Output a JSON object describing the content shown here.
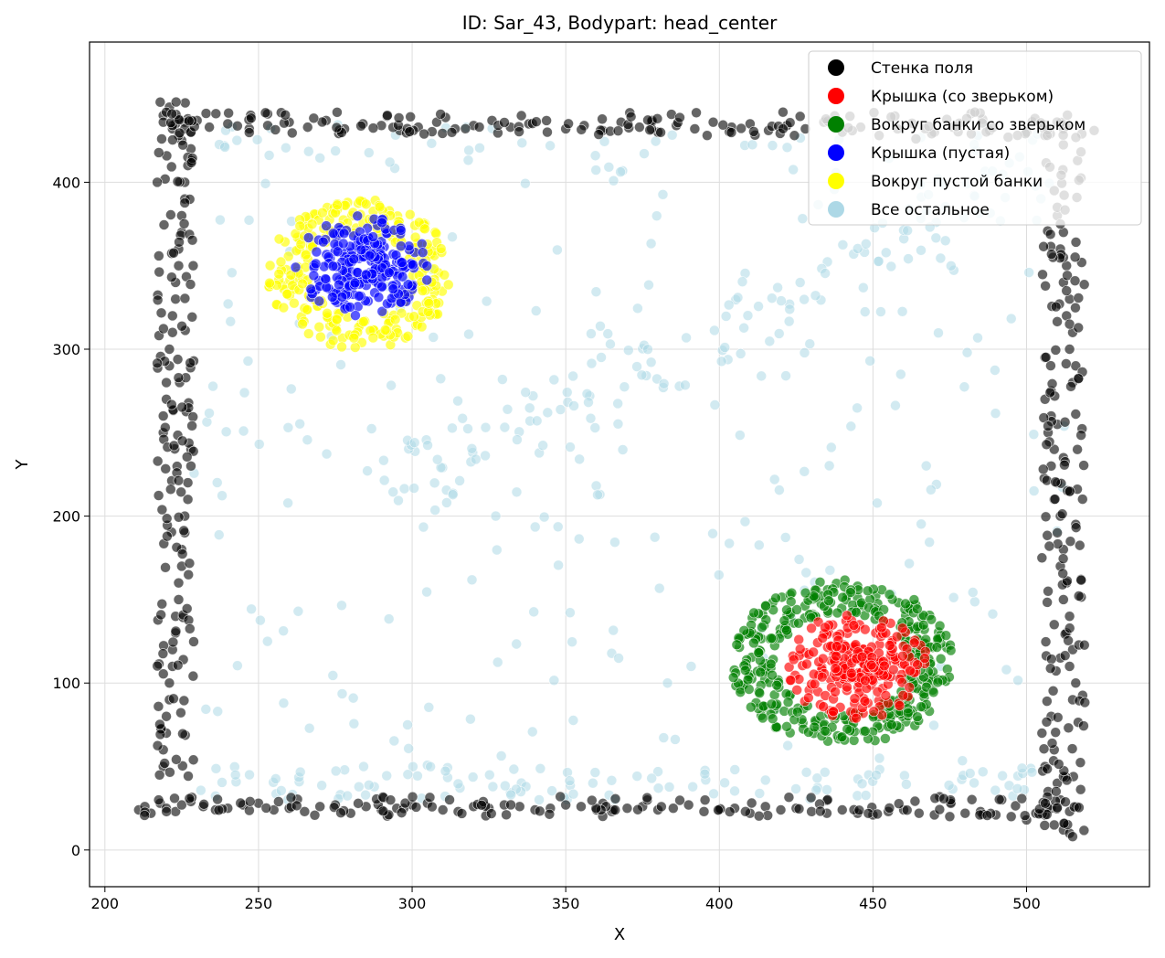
{
  "chart_data": {
    "type": "scatter",
    "title": "ID: Sar_43, Bodypart: head_center",
    "xlabel": "X",
    "ylabel": "Y",
    "xlim": [
      195,
      540
    ],
    "ylim": [
      -22,
      484
    ],
    "xticks": [
      200,
      250,
      300,
      350,
      400,
      450,
      500
    ],
    "yticks": [
      0,
      100,
      200,
      300,
      400
    ],
    "grid": true,
    "legend_position": "top-right",
    "series": [
      {
        "name": "Стенка поля",
        "color": "#000000",
        "description_of_shape": "dense band along the arena border",
        "x": [
          211,
          213,
          215,
          218,
          220,
          223,
          225,
          228,
          232,
          236,
          240,
          245,
          250,
          255,
          260,
          265,
          270,
          275,
          280,
          285,
          290,
          295,
          300,
          305,
          310,
          315,
          320,
          325,
          330,
          335,
          340,
          345,
          350,
          355,
          360,
          365,
          370,
          375,
          380,
          385,
          390,
          395,
          400,
          405,
          410,
          415,
          420,
          425,
          430,
          435,
          440,
          445,
          450,
          455,
          460,
          465,
          470,
          475,
          480,
          485,
          490,
          495,
          500,
          503,
          506,
          509,
          512,
          514,
          515,
          219,
          220,
          221,
          222,
          223,
          224,
          225,
          226,
          227,
          228,
          219,
          220,
          221,
          222,
          223,
          224,
          225,
          226,
          227,
          228,
          219,
          220,
          221,
          222,
          223,
          224,
          225,
          226,
          227,
          228,
          219,
          220,
          221,
          222,
          223,
          224,
          225,
          226,
          227,
          228,
          219,
          221,
          223,
          225,
          227,
          218,
          220,
          222,
          224,
          226,
          219,
          222,
          224,
          226,
          228,
          230,
          234,
          240,
          247,
          253,
          260,
          266,
          272,
          278,
          284,
          290,
          296,
          302,
          308,
          314,
          320,
          326,
          332,
          338,
          344,
          350,
          356,
          362,
          368,
          374,
          380,
          386,
          392,
          398,
          404,
          410,
          416,
          422,
          428,
          434,
          440,
          446,
          452,
          458,
          464,
          470,
          476,
          482,
          488,
          494,
          500,
          506,
          512,
          518,
          522,
          510,
          511,
          512,
          513,
          514,
          515,
          508,
          509,
          510,
          511,
          512,
          513,
          514,
          515,
          516,
          508,
          509,
          510,
          511,
          512,
          513,
          514,
          515,
          516,
          506,
          507,
          508,
          509,
          510,
          511,
          512,
          513,
          514,
          515,
          505,
          506,
          507,
          508,
          509,
          510,
          511,
          512,
          513,
          514,
          506,
          508,
          510,
          512,
          514,
          516,
          505,
          507,
          509,
          511
        ],
        "y": [
          24,
          26,
          22,
          28,
          25,
          23,
          27,
          29,
          26,
          24,
          25,
          27,
          28,
          24,
          25,
          23,
          26,
          27,
          22,
          26,
          24,
          25,
          27,
          28,
          24,
          23,
          26,
          25,
          27,
          26,
          24,
          25,
          27,
          26,
          24,
          23,
          25,
          26,
          24,
          25,
          27,
          23,
          24,
          25,
          22,
          26,
          24,
          25,
          23,
          22,
          24,
          22,
          21,
          23,
          24,
          22,
          21,
          20,
          22,
          23,
          21,
          20,
          18,
          22,
          21,
          15,
          12,
          10,
          8,
          50,
          70,
          90,
          110,
          130,
          150,
          170,
          190,
          210,
          230,
          250,
          270,
          290,
          310,
          330,
          350,
          370,
          390,
          410,
          420,
          60,
          80,
          100,
          120,
          140,
          160,
          180,
          200,
          220,
          240,
          260,
          280,
          300,
          320,
          340,
          360,
          380,
          400,
          415,
          430,
          440,
          445,
          435,
          425,
          438,
          448,
          442,
          432,
          428,
          436,
          436,
          434,
          438,
          432,
          430,
          437,
          433,
          435,
          432,
          434,
          436,
          433,
          437,
          432,
          435,
          434,
          431,
          433,
          436,
          432,
          434,
          437,
          433,
          435,
          430,
          432,
          434,
          431,
          436,
          433,
          430,
          434,
          432,
          436,
          433,
          435,
          431,
          434,
          432,
          436,
          430,
          433,
          428,
          432,
          426,
          430,
          433,
          429,
          431,
          427,
          430,
          428,
          432,
          429,
          431,
          380,
          360,
          340,
          320,
          300,
          280,
          260,
          240,
          220,
          200,
          180,
          160,
          140,
          120,
          100,
          80,
          60,
          40,
          30,
          370,
          350,
          330,
          310,
          290,
          270,
          250,
          230,
          210,
          190,
          170,
          150,
          130,
          110,
          90,
          70,
          50,
          35,
          25,
          395,
          385,
          375,
          355,
          335,
          315,
          295,
          275,
          255,
          235,
          215,
          195,
          175,
          155,
          135,
          115
        ]
      },
      {
        "name": "Крышка (со зверьком)",
        "color": "#ff0000",
        "description_of_shape": "oval cluster centered near (445, 110)",
        "center": [
          445,
          110
        ],
        "rx": 23,
        "ry": 32,
        "count": 260
      },
      {
        "name": "Вокруг банки со зверьком",
        "color": "#008000",
        "description_of_shape": "ring around the red cluster",
        "center": [
          440,
          112
        ],
        "rx": 36,
        "ry": 50,
        "count": 380
      },
      {
        "name": "Крышка (пустая)",
        "color": "#0000ff",
        "description_of_shape": "oval cluster centered near (284, 350)",
        "center": [
          284,
          350
        ],
        "rx": 22,
        "ry": 30,
        "count": 240
      },
      {
        "name": "Вокруг пустой банки",
        "color": "#ffff00",
        "description_of_shape": "ring around the blue cluster",
        "center": [
          283,
          345
        ],
        "rx": 30,
        "ry": 45,
        "count": 280
      },
      {
        "name": "Все остальное",
        "color": "#add8e6",
        "description_of_shape": "sparse trajectories across the arena interior",
        "count": 520
      }
    ]
  }
}
